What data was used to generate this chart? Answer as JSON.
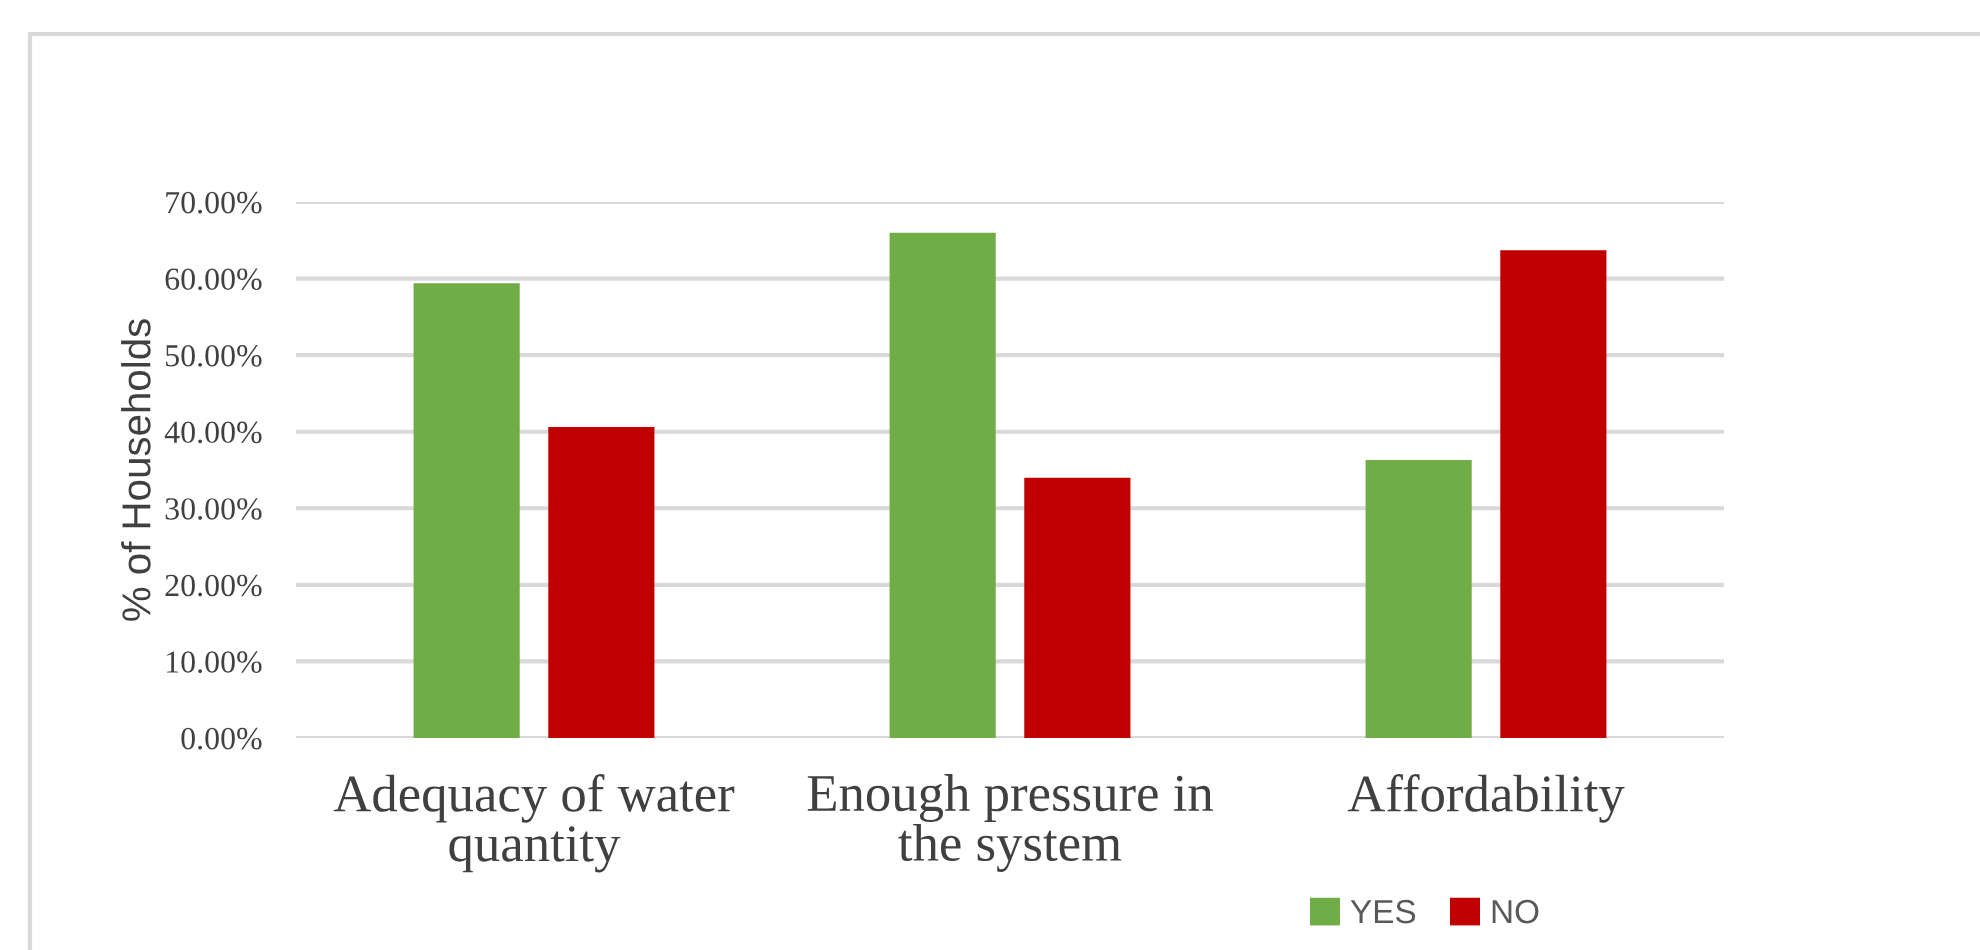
{
  "chart_data": {
    "type": "bar",
    "ylabel": "% of Households",
    "categories": [
      "Adequacy of water quantity",
      "Enough pressure in the system",
      "Affordability"
    ],
    "series": [
      {
        "name": "YES",
        "color": "#70ad47",
        "values": [
          59.4,
          66.0,
          36.3
        ]
      },
      {
        "name": "NO",
        "color": "#c00000",
        "values": [
          40.6,
          34.0,
          63.7
        ]
      }
    ],
    "ylim": [
      0,
      70
    ],
    "yticks": [
      {
        "value": 0,
        "label": "0.00%"
      },
      {
        "value": 10,
        "label": "10.00%"
      },
      {
        "value": 20,
        "label": "20.00%"
      },
      {
        "value": 30,
        "label": "30.00%"
      },
      {
        "value": 40,
        "label": "40.00%"
      },
      {
        "value": 50,
        "label": "50.00%"
      },
      {
        "value": 60,
        "label": "60.00%"
      },
      {
        "value": 70,
        "label": "70.00%"
      }
    ],
    "grid": "y",
    "legend": "bottom right"
  }
}
